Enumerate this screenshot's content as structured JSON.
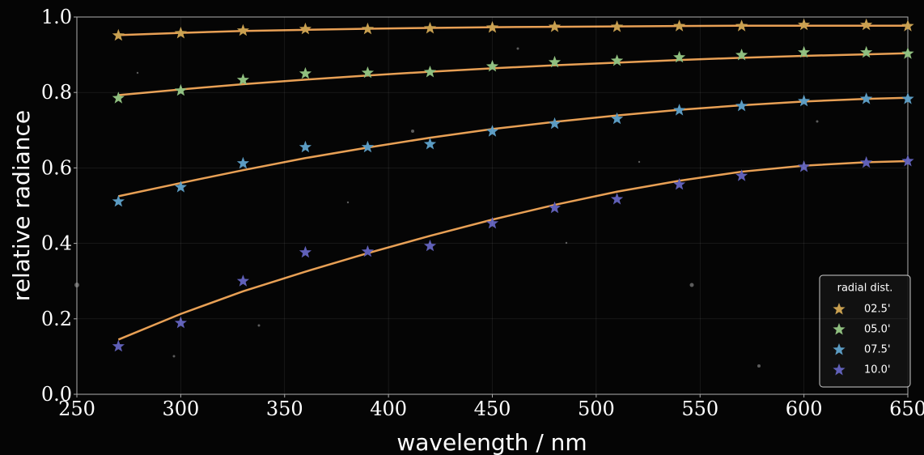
{
  "chart_data": {
    "type": "scatter",
    "x_label": "wavelength / nm",
    "y_label": "relative radiance",
    "x": [
      270,
      300,
      330,
      360,
      390,
      420,
      450,
      480,
      510,
      540,
      570,
      600,
      630,
      650
    ],
    "xlim": [
      250,
      650
    ],
    "xticks": [
      250,
      300,
      350,
      400,
      450,
      500,
      550,
      600,
      650
    ],
    "ylim": [
      0,
      1
    ],
    "yticks": [
      {
        "value": 0,
        "label": "0.0"
      },
      {
        "value": 0.2,
        "label": "0.2"
      },
      {
        "value": 0.4,
        "label": "0.4"
      },
      {
        "value": 0.6,
        "label": "0.6"
      },
      {
        "value": 0.8,
        "label": "0.8"
      },
      {
        "value": 1,
        "label": "1.0"
      }
    ],
    "grid": true,
    "legend_title": "radial dist.",
    "legend_position": "lower right",
    "fit_color": "#e8a055",
    "series": [
      {
        "name": "02.5'",
        "color": "#c9a050",
        "values": [
          0.951,
          0.957,
          0.964,
          0.968,
          0.968,
          0.97,
          0.972,
          0.974,
          0.974,
          0.976,
          0.976,
          0.979,
          0.979,
          0.976
        ],
        "fit": [
          0.952,
          0.958,
          0.963,
          0.966,
          0.969,
          0.971,
          0.973,
          0.974,
          0.975,
          0.976,
          0.977,
          0.977,
          0.977,
          0.977
        ]
      },
      {
        "name": "05.0'",
        "color": "#8fbf7f",
        "values": [
          0.785,
          0.805,
          0.833,
          0.85,
          0.852,
          0.854,
          0.869,
          0.88,
          0.884,
          0.893,
          0.899,
          0.906,
          0.906,
          0.903
        ],
        "fit": [
          0.793,
          0.808,
          0.822,
          0.834,
          0.845,
          0.855,
          0.864,
          0.872,
          0.879,
          0.886,
          0.892,
          0.897,
          0.901,
          0.904
        ]
      },
      {
        "name": "07.5'",
        "color": "#5b9bc2",
        "values": [
          0.511,
          0.549,
          0.612,
          0.655,
          0.655,
          0.663,
          0.697,
          0.717,
          0.73,
          0.753,
          0.764,
          0.777,
          0.783,
          0.783
        ],
        "fit": [
          0.525,
          0.56,
          0.594,
          0.626,
          0.654,
          0.68,
          0.703,
          0.722,
          0.739,
          0.754,
          0.766,
          0.776,
          0.783,
          0.786
        ]
      },
      {
        "name": "10.0'",
        "color": "#6060b8",
        "values": [
          0.127,
          0.189,
          0.3,
          0.376,
          0.378,
          0.393,
          0.453,
          0.494,
          0.517,
          0.556,
          0.579,
          0.603,
          0.614,
          0.618
        ],
        "fit": [
          0.145,
          0.213,
          0.273,
          0.325,
          0.374,
          0.42,
          0.463,
          0.502,
          0.537,
          0.566,
          0.59,
          0.606,
          0.615,
          0.618
        ]
      }
    ]
  }
}
